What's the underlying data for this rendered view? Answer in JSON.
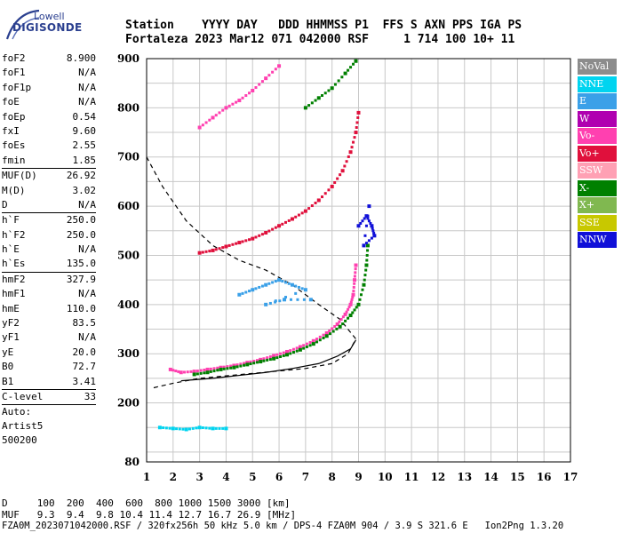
{
  "logo": {
    "line1": "Lowell",
    "line2": "DIGISONDE"
  },
  "header": {
    "row1": "Station    YYYY DAY   DDD HHMMSS P1  FFS S AXN PPS IGA PS",
    "row2": "Fortaleza 2023 Mar12 071 042000 RSF     1 714 100 10+ 11"
  },
  "params": [
    {
      "label": "foF2",
      "value": "8.900"
    },
    {
      "label": "foF1",
      "value": "N/A"
    },
    {
      "label": "foF1p",
      "value": "N/A"
    },
    {
      "label": "foE",
      "value": "N/A"
    },
    {
      "label": "foEp",
      "value": "0.54"
    },
    {
      "label": "fxI",
      "value": "9.60"
    },
    {
      "label": "foEs",
      "value": "2.55"
    },
    {
      "label": "fmin",
      "value": "1.85"
    },
    {
      "sep": true
    },
    {
      "label": "MUF(D)",
      "value": "26.92"
    },
    {
      "label": "M(D)",
      "value": "3.02"
    },
    {
      "label": "D",
      "value": "N/A"
    },
    {
      "sep": true
    },
    {
      "label": "h`F",
      "value": "250.0"
    },
    {
      "label": "h`F2",
      "value": "250.0"
    },
    {
      "label": "h`E",
      "value": "N/A"
    },
    {
      "label": "h`Es",
      "value": "135.0"
    },
    {
      "sep": true
    },
    {
      "label": "hmF2",
      "value": "327.9"
    },
    {
      "label": "hmF1",
      "value": "N/A"
    },
    {
      "label": "hmE",
      "value": "110.0"
    },
    {
      "label": "yF2",
      "value": "83.5"
    },
    {
      "label": "yF1",
      "value": "N/A"
    },
    {
      "label": "yE",
      "value": "20.0"
    },
    {
      "label": "B0",
      "value": "72.7"
    },
    {
      "label": "B1",
      "value": "3.41"
    },
    {
      "sep": true
    },
    {
      "label": "C-level",
      "value": "33"
    },
    {
      "sep": true
    }
  ],
  "auto": {
    "line1": "Auto:",
    "line2": "Artist5",
    "line3": "500200"
  },
  "legend": [
    {
      "label": "NoVal",
      "color": "#8c8c8c"
    },
    {
      "label": "NNE",
      "color": "#00d4f0"
    },
    {
      "label": "E",
      "color": "#3aa0e8"
    },
    {
      "label": "W",
      "color": "#b000b0"
    },
    {
      "label": "Vo-",
      "color": "#ff40b0"
    },
    {
      "label": "Vo+",
      "color": "#e0103c"
    },
    {
      "label": "SSW",
      "color": "#ffa0b4"
    },
    {
      "label": "X-",
      "color": "#008000"
    },
    {
      "label": "X+",
      "color": "#80b850"
    },
    {
      "label": "SSE",
      "color": "#c8c800"
    },
    {
      "label": "NNW",
      "color": "#1010d8"
    }
  ],
  "footer": {
    "line1": "D     100  200  400  600  800 1000 1500 3000 [km]",
    "line2": "MUF   9.3  9.4  9.8 10.4 11.4 12.7 16.7 26.9 [MHz]",
    "line3": "FZA0M_2023071042000.RSF / 320fx256h 50 kHz 5.0 km / DPS-4 FZA0M 904 / 3.9 S 321.6 E   Ion2Png 1.3.20"
  },
  "chart_data": {
    "type": "scatter",
    "xlim": [
      1,
      17
    ],
    "ylim": [
      80,
      900
    ],
    "xticks": [
      1,
      2,
      3,
      4,
      5,
      6,
      7,
      8,
      9,
      10,
      11,
      12,
      13,
      14,
      15,
      16,
      17
    ],
    "yticks": [
      80,
      200,
      300,
      400,
      500,
      600,
      700,
      800,
      900
    ],
    "grid": true,
    "series": [
      {
        "name": "O-trace F2",
        "color": "#ff40b0",
        "points": [
          [
            1.9,
            268
          ],
          [
            2.3,
            262
          ],
          [
            2.8,
            264
          ],
          [
            3.3,
            268
          ],
          [
            3.8,
            272
          ],
          [
            4.3,
            276
          ],
          [
            4.8,
            282
          ],
          [
            5.3,
            288
          ],
          [
            5.8,
            296
          ],
          [
            6.3,
            304
          ],
          [
            6.8,
            314
          ],
          [
            7.3,
            326
          ],
          [
            7.8,
            342
          ],
          [
            8.2,
            360
          ],
          [
            8.5,
            380
          ],
          [
            8.7,
            400
          ],
          [
            8.8,
            420
          ],
          [
            8.85,
            450
          ],
          [
            8.9,
            480
          ]
        ]
      },
      {
        "name": "X-trace F2",
        "color": "#008000",
        "points": [
          [
            2.8,
            258
          ],
          [
            3.3,
            262
          ],
          [
            3.8,
            268
          ],
          [
            4.3,
            272
          ],
          [
            4.8,
            278
          ],
          [
            5.3,
            284
          ],
          [
            5.8,
            290
          ],
          [
            6.3,
            298
          ],
          [
            6.8,
            308
          ],
          [
            7.3,
            320
          ],
          [
            7.8,
            336
          ],
          [
            8.3,
            355
          ],
          [
            8.7,
            378
          ],
          [
            9.0,
            400
          ],
          [
            9.2,
            440
          ],
          [
            9.3,
            480
          ],
          [
            9.35,
            520
          ]
        ]
      },
      {
        "name": "2-hop O",
        "color": "#e0103c",
        "points": [
          [
            3.0,
            505
          ],
          [
            3.5,
            510
          ],
          [
            4.0,
            518
          ],
          [
            4.5,
            526
          ],
          [
            5.0,
            534
          ],
          [
            5.5,
            546
          ],
          [
            6.0,
            560
          ],
          [
            6.5,
            574
          ],
          [
            7.0,
            590
          ],
          [
            7.5,
            612
          ],
          [
            8.0,
            640
          ],
          [
            8.4,
            672
          ],
          [
            8.7,
            710
          ],
          [
            8.9,
            750
          ],
          [
            9.0,
            790
          ]
        ]
      },
      {
        "name": "3-hop O",
        "color": "#ff40b0",
        "points": [
          [
            3.0,
            760
          ],
          [
            3.5,
            780
          ],
          [
            4.0,
            800
          ],
          [
            4.5,
            815
          ],
          [
            5.0,
            835
          ],
          [
            5.5,
            860
          ],
          [
            6.0,
            885
          ]
        ]
      },
      {
        "name": "3-hop X",
        "color": "#008000",
        "points": [
          [
            7.0,
            800
          ],
          [
            7.5,
            820
          ],
          [
            8.0,
            840
          ],
          [
            8.5,
            870
          ],
          [
            8.9,
            895
          ]
        ]
      },
      {
        "name": "Es",
        "color": "#00d4f0",
        "points": [
          [
            1.5,
            150
          ],
          [
            2.0,
            148
          ],
          [
            2.5,
            146
          ],
          [
            3.0,
            150
          ],
          [
            3.5,
            148
          ],
          [
            4.0,
            148
          ]
        ]
      },
      {
        "name": "F2 spread",
        "color": "#3aa0e8",
        "points": [
          [
            4.5,
            420
          ],
          [
            5.0,
            430
          ],
          [
            5.5,
            440
          ],
          [
            6.0,
            450
          ],
          [
            6.5,
            440
          ],
          [
            7.0,
            430
          ],
          [
            5.5,
            400
          ],
          [
            6.2,
            410
          ],
          [
            7.2,
            410
          ]
        ]
      },
      {
        "name": "NNW echoes",
        "color": "#1010d8",
        "points": [
          [
            9.0,
            560
          ],
          [
            9.3,
            580
          ],
          [
            9.5,
            560
          ],
          [
            9.6,
            540
          ],
          [
            9.2,
            520
          ],
          [
            9.4,
            600
          ]
        ]
      }
    ],
    "profile": {
      "name": "profile",
      "points": [
        [
          2.3,
          245
        ],
        [
          3.5,
          250
        ],
        [
          4.5,
          256
        ],
        [
          5.5,
          262
        ],
        [
          6.5,
          270
        ],
        [
          7.5,
          280
        ],
        [
          8.2,
          295
        ],
        [
          8.7,
          310
        ],
        [
          8.9,
          328
        ]
      ]
    },
    "muf_curve": {
      "name": "MUF",
      "points": [
        [
          1.0,
          700
        ],
        [
          1.6,
          640
        ],
        [
          2.5,
          570
        ],
        [
          3.5,
          520
        ],
        [
          4.5,
          490
        ],
        [
          5.5,
          470
        ],
        [
          6.5,
          440
        ],
        [
          7.5,
          400
        ],
        [
          8.3,
          370
        ],
        [
          8.9,
          330
        ],
        [
          8.6,
          300
        ],
        [
          8.0,
          280
        ],
        [
          7.0,
          270
        ],
        [
          5.0,
          260
        ],
        [
          3.0,
          250
        ],
        [
          2.0,
          240
        ],
        [
          1.2,
          230
        ]
      ]
    }
  }
}
